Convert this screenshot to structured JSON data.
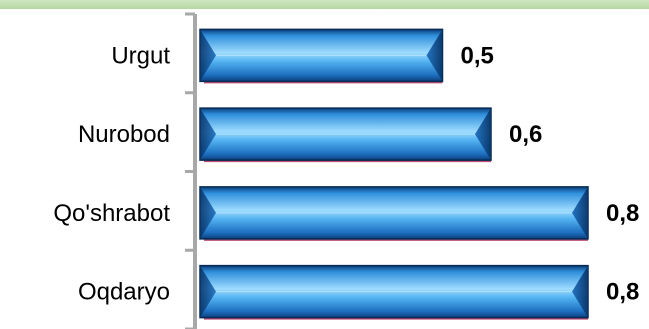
{
  "chart_data": {
    "type": "bar",
    "orientation": "horizontal",
    "categories": [
      "Urgut",
      "Nurobod",
      "Qo'shrabot",
      "Oqdaryo"
    ],
    "values": [
      0.5,
      0.6,
      0.8,
      0.8
    ],
    "value_labels": [
      "0,5",
      "0,6",
      "0,8",
      "0,8"
    ],
    "title": "",
    "xlabel": "",
    "ylabel": "",
    "xlim": [
      0,
      0.8
    ],
    "grid": false,
    "legend": "none",
    "colors": {
      "bar_light": "#7fd0ff",
      "bar_mid": "#2f8fdc",
      "bar_dark": "#0b3f7a",
      "bar_edge": "#062a55",
      "bar_shadow": "#b0305a",
      "axis": "#a8a8a8",
      "header_band": "#b6d8a3"
    }
  }
}
